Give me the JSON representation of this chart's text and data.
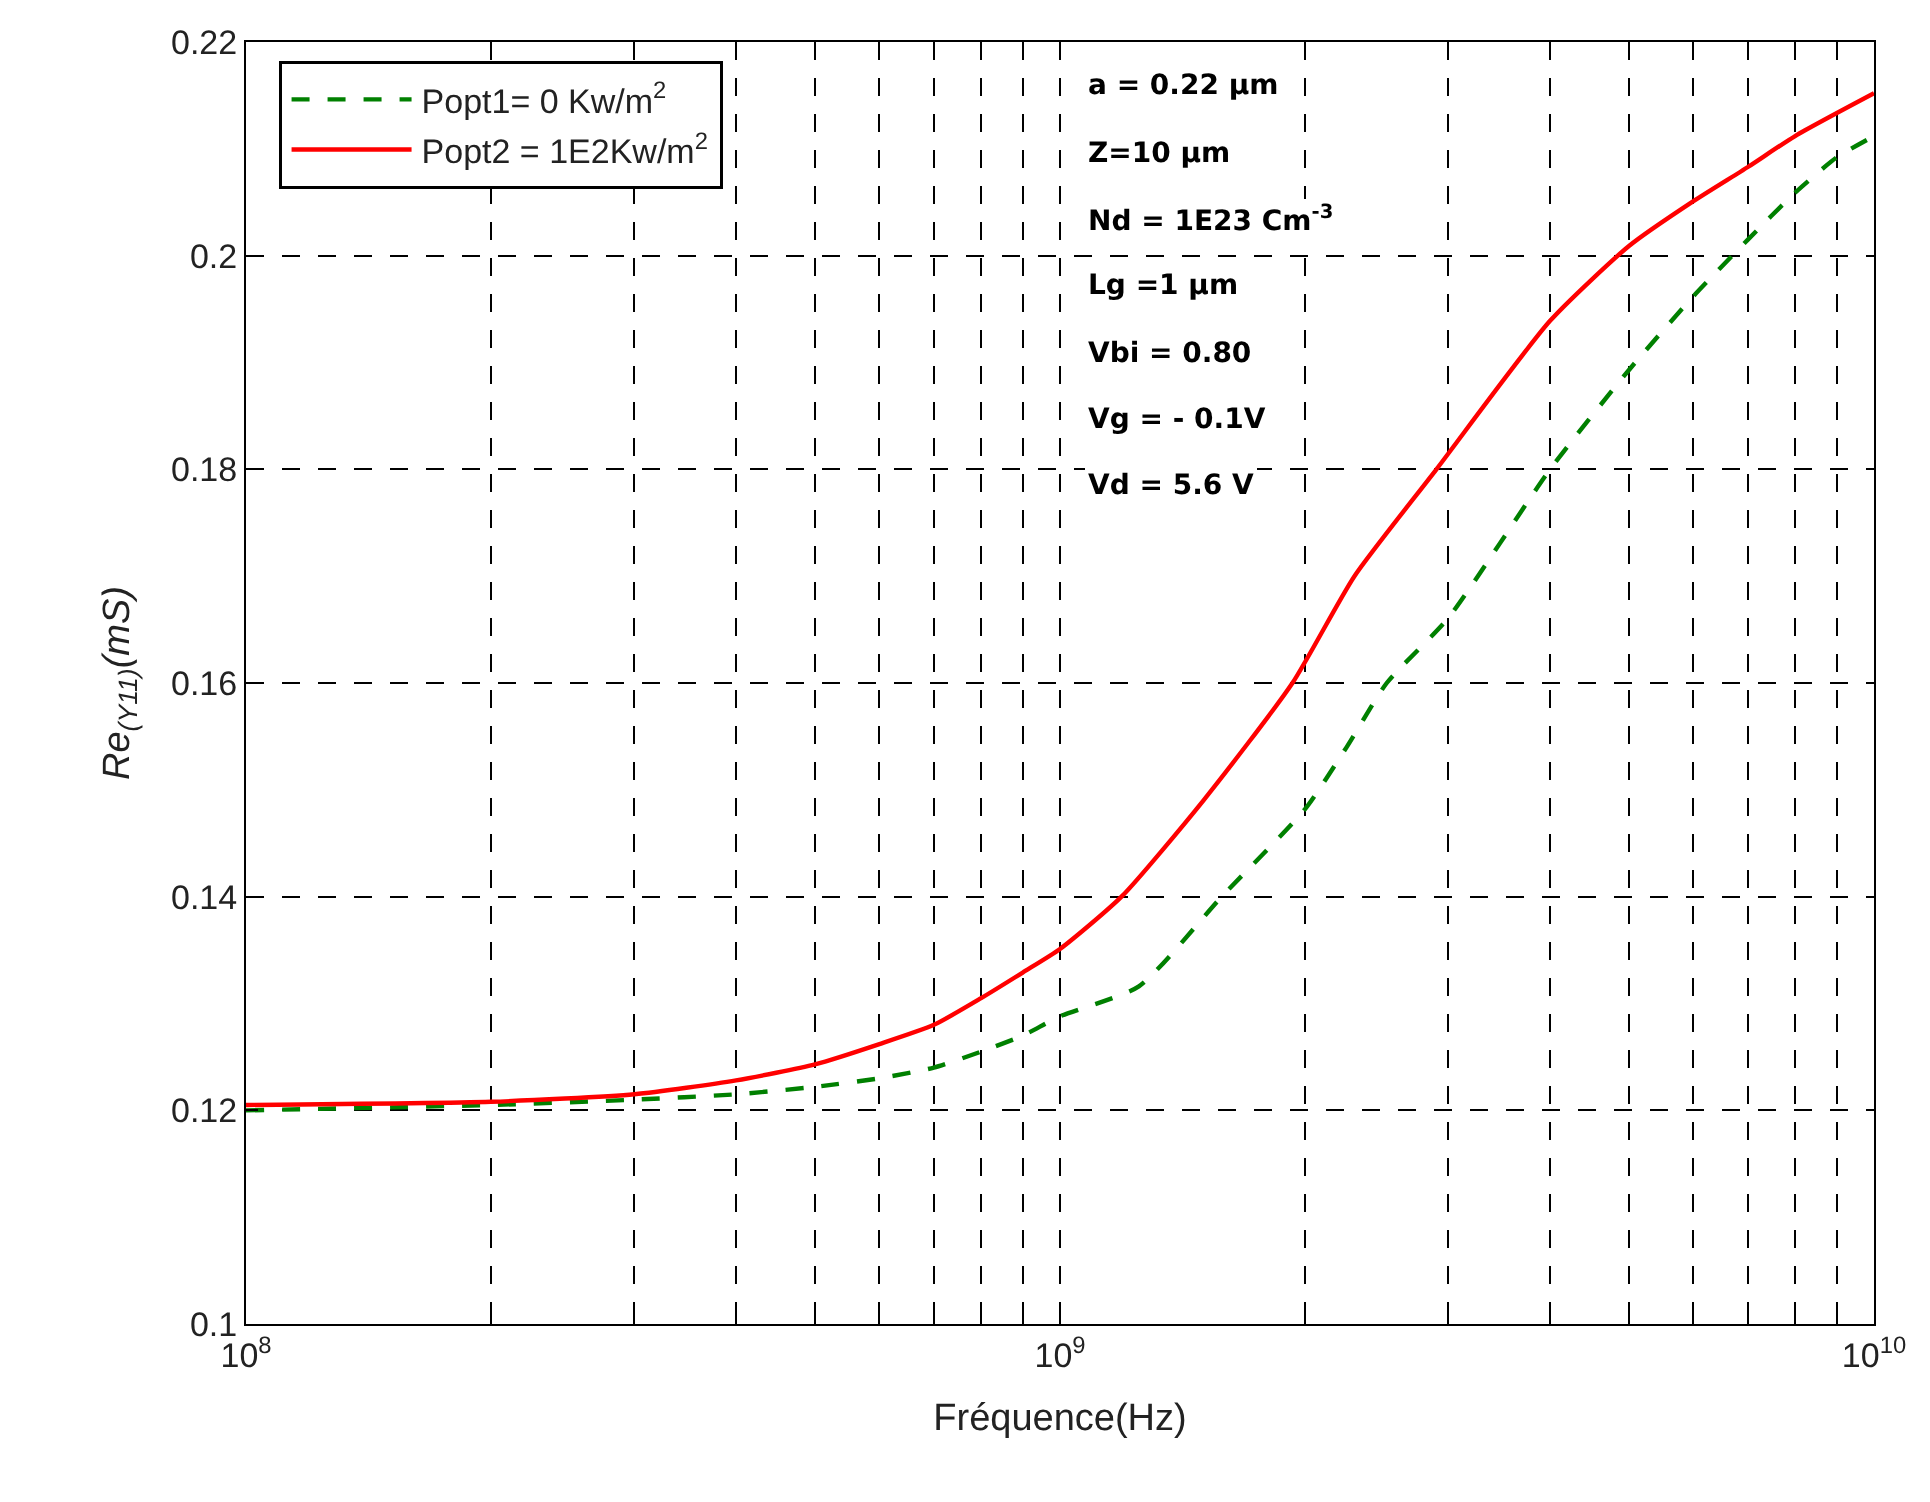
{
  "chart_data": {
    "type": "line",
    "xlabel": "Fréquence(Hz)",
    "ylabel": "Re$_{(Y11)}$(mS)",
    "log": "x",
    "grid": true,
    "legend": "top left",
    "line_style": "solid",
    "marker": "none",
    "xlim": [
      100000000,
      10000000000
    ],
    "ylim": [
      0.1,
      0.22
    ],
    "xticks": [
      {
        "value": 100000000,
        "label": "10$^{8}$"
      },
      {
        "value": 200000000,
        "label": null
      },
      {
        "value": 300000000,
        "label": null
      },
      {
        "value": 400000000,
        "label": null
      },
      {
        "value": 500000000,
        "label": null
      },
      {
        "value": 600000000,
        "label": null
      },
      {
        "value": 700000000,
        "label": null
      },
      {
        "value": 800000000,
        "label": null
      },
      {
        "value": 900000000,
        "label": null
      },
      {
        "value": 1000000000,
        "label": "10$^{9}$"
      },
      {
        "value": 2000000000,
        "label": null
      },
      {
        "value": 3000000000,
        "label": null
      },
      {
        "value": 4000000000,
        "label": null
      },
      {
        "value": 5000000000,
        "label": null
      },
      {
        "value": 6000000000,
        "label": null
      },
      {
        "value": 7000000000,
        "label": null
      },
      {
        "value": 8000000000,
        "label": null
      },
      {
        "value": 9000000000,
        "label": null
      },
      {
        "value": 10000000000,
        "label": "10$^{10}$"
      }
    ],
    "yticks": [
      0.1,
      0.12,
      0.14,
      0.16,
      0.18,
      0.2,
      0.22
    ],
    "annotations": [
      "a = 0.22 μm",
      "Z=10 μm",
      "Nd = 1E23 Cm$^{-3}$",
      "Lg =1 μm",
      "Vbi = 0.80",
      "Vg = - 0.1V",
      "Vd = 5.6 V"
    ],
    "series": [
      {
        "name": "Popt1= 0 Kw/m$^{2}$",
        "color": "#008000",
        "line_style": "dashed",
        "x": [
          100000000,
          200000000,
          300000000,
          400000000,
          500000000,
          600000000,
          700000000,
          800000000,
          900000000,
          1000000000,
          1250000000,
          1580000000,
          2000000000,
          2250000000,
          2520000000,
          3000000000,
          4000000000,
          5000000000,
          6000000000,
          7000000000,
          8000000000,
          9000000000,
          10000000000
        ],
        "values": [
          0.12,
          0.1205,
          0.121,
          0.1215,
          0.1222,
          0.123,
          0.124,
          0.1255,
          0.127,
          0.1288,
          0.1316,
          0.14,
          0.1482,
          0.154,
          0.16,
          0.1661,
          0.18,
          0.1893,
          0.1962,
          0.2015,
          0.2059,
          0.2092,
          0.2112
        ]
      },
      {
        "name": "Popt2 = 1E2Kw/m$^{2}$",
        "color": "#ff0000",
        "x": [
          100000000,
          200000000,
          300000000,
          400000000,
          500000000,
          600000000,
          700000000,
          800000000,
          900000000,
          1000000000,
          1190000000,
          1500000000,
          1930000000,
          2300000000,
          2900000000,
          4000000000,
          5000000000,
          6000000000,
          7000000000,
          8000000000,
          10000000000
        ],
        "values": [
          0.1205,
          0.1208,
          0.1215,
          0.1228,
          0.1243,
          0.1262,
          0.128,
          0.1305,
          0.1329,
          0.1351,
          0.14,
          0.149,
          0.16,
          0.17,
          0.18,
          0.1939,
          0.2009,
          0.2051,
          0.2083,
          0.2112,
          0.2152
        ]
      }
    ]
  }
}
